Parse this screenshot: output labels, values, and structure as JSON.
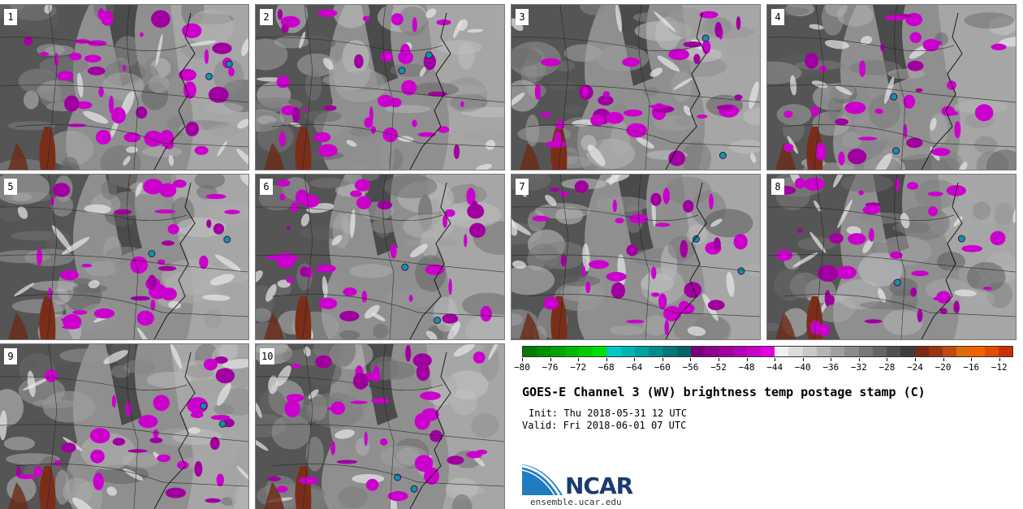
{
  "panels": [
    {
      "label": "1",
      "seed": 11,
      "magenta": 0.55
    },
    {
      "label": "2",
      "seed": 23,
      "magenta": 0.5
    },
    {
      "label": "3",
      "seed": 37,
      "magenta": 0.45
    },
    {
      "label": "4",
      "seed": 41,
      "magenta": 0.45
    },
    {
      "label": "5",
      "seed": 53,
      "magenta": 0.5
    },
    {
      "label": "6",
      "seed": 67,
      "magenta": 0.5
    },
    {
      "label": "7",
      "seed": 71,
      "magenta": 0.5
    },
    {
      "label": "8",
      "seed": 83,
      "magenta": 0.5
    },
    {
      "label": "9",
      "seed": 97,
      "magenta": 0.45
    },
    {
      "label": "10",
      "seed": 109,
      "magenta": 0.5
    }
  ],
  "colorbar": {
    "colors": [
      "#007a00",
      "#008f00",
      "#00a300",
      "#00b800",
      "#00cc00",
      "#00e000",
      "#00c8c8",
      "#00b4b4",
      "#00a0a0",
      "#008c8c",
      "#007878",
      "#006464",
      "#7a007a",
      "#8c008c",
      "#a000a0",
      "#b400b4",
      "#c800c8",
      "#e000e0",
      "#f0f0f0",
      "#dcdcdc",
      "#c8c8c8",
      "#b4b4b4",
      "#a0a0a0",
      "#8c8c8c",
      "#787878",
      "#646464",
      "#505050",
      "#3c3c3c",
      "#7a2a14",
      "#9a3412",
      "#c04a0c",
      "#e06a0a",
      "#f06400",
      "#e04c00",
      "#c83200"
    ],
    "tick_labels": [
      "−80",
      "−76",
      "−72",
      "−68",
      "−64",
      "−60",
      "−56",
      "−52",
      "−48",
      "−44",
      "−40",
      "−36",
      "−32",
      "−28",
      "−24",
      "−20",
      "−16",
      "−12"
    ]
  },
  "text": {
    "title": "GOES-E Channel 3 (WV) brightness temp postage stamp (C)",
    "init": "Init: Thu 2018-05-31 12 UTC",
    "valid": "Valid: Fri 2018-06-01 07 UTC",
    "logo": "NCAR",
    "url": "ensemble.ucar.edu"
  }
}
